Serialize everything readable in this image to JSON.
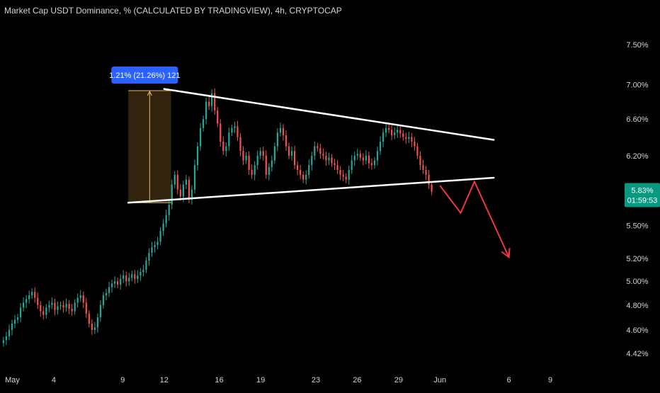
{
  "title": "Market Cap USDT Dominance, % (CALCULATED BY TRADINGVIEW), 4h, CRYPTOCAP",
  "colors": {
    "background": "#000000",
    "up_candle": "#26a69a",
    "down_candle": "#ef5350",
    "trendline": "#ffffff",
    "projection": "#f23645",
    "label_bg": "#2962ff",
    "price_tag_bg": "#089981",
    "axis_text": "#d1d4dc",
    "measure_fill": "#3b2a10",
    "measure_border": "#e6c066"
  },
  "price_tag": {
    "value": "5.83%",
    "countdown": "01:59:53"
  },
  "measure_label": "1.21% (21.26%) 121",
  "chart_data": {
    "type": "candlestick",
    "symbol": "Market Cap USDT Dominance, %",
    "interval": "4h",
    "y_scale": "log",
    "ylim": [
      4.35,
      7.9
    ],
    "y_ticks": [
      "7.50%",
      "7.00%",
      "6.60%",
      "6.20%",
      "5.83%",
      "5.50%",
      "5.20%",
      "5.00%",
      "4.80%",
      "4.60%",
      "4.42%"
    ],
    "x_ticks": [
      "May",
      "4",
      "9",
      "12",
      "16",
      "19",
      "23",
      "26",
      "29",
      "Jun",
      "6",
      "9"
    ],
    "x_tick_days": [
      1,
      4,
      9,
      12,
      16,
      19,
      23,
      26,
      29,
      32,
      37,
      40
    ],
    "xlim_days": [
      0.1,
      44.0
    ],
    "last_value": 5.83,
    "candles_close": [
      4.52,
      4.55,
      4.6,
      4.65,
      4.68,
      4.7,
      4.78,
      4.82,
      4.85,
      4.88,
      4.91,
      4.86,
      4.8,
      4.75,
      4.72,
      4.78,
      4.8,
      4.82,
      4.76,
      4.79,
      4.8,
      4.78,
      4.81,
      4.77,
      4.75,
      4.82,
      4.86,
      4.88,
      4.82,
      4.73,
      4.65,
      4.6,
      4.62,
      4.7,
      4.8,
      4.88,
      4.9,
      4.95,
      4.98,
      5.0,
      4.97,
      5.02,
      5.05,
      5.0,
      5.03,
      5.06,
      5.02,
      5.05,
      5.08,
      5.1,
      5.18,
      5.25,
      5.3,
      5.32,
      5.35,
      5.45,
      5.52,
      5.6,
      5.7,
      5.9,
      6.0,
      5.85,
      5.78,
      5.9,
      5.95,
      5.75,
      5.85,
      6.1,
      6.3,
      6.5,
      6.6,
      6.8,
      6.75,
      6.9,
      6.7,
      6.55,
      6.35,
      6.25,
      6.3,
      6.45,
      6.5,
      6.52,
      6.4,
      6.25,
      6.15,
      6.2,
      6.05,
      6.0,
      6.1,
      6.2,
      6.25,
      6.2,
      6.0,
      6.08,
      6.15,
      6.3,
      6.45,
      6.5,
      6.42,
      6.3,
      6.2,
      6.25,
      6.1,
      6.05,
      6.0,
      5.95,
      6.0,
      6.1,
      6.2,
      6.3,
      6.28,
      6.22,
      6.2,
      6.15,
      6.18,
      6.12,
      6.1,
      6.05,
      6.0,
      5.98,
      5.95,
      6.05,
      6.15,
      6.2,
      6.22,
      6.18,
      6.15,
      6.2,
      6.12,
      6.1,
      6.15,
      6.25,
      6.35,
      6.45,
      6.5,
      6.48,
      6.42,
      6.45,
      6.48,
      6.44,
      6.4,
      6.38,
      6.4,
      6.35,
      6.3,
      6.2,
      6.1,
      6.05,
      6.0,
      5.9,
      5.83
    ],
    "trendlines": [
      {
        "name": "upper",
        "from": [
          12.0,
          6.95
        ],
        "to": [
          35.9,
          6.37
        ]
      },
      {
        "name": "lower",
        "from": [
          9.4,
          5.72
        ],
        "to": [
          35.9,
          5.97
        ]
      }
    ],
    "projection_path": [
      [
        32.0,
        5.89
      ],
      [
        33.5,
        5.62
      ],
      [
        34.5,
        5.93
      ],
      [
        37.0,
        5.21
      ]
    ],
    "measure_range": {
      "from_day": 9.4,
      "to_day": 12.5,
      "low": 5.72,
      "high": 6.93,
      "change": "1.21% (21.26%) 121"
    }
  }
}
